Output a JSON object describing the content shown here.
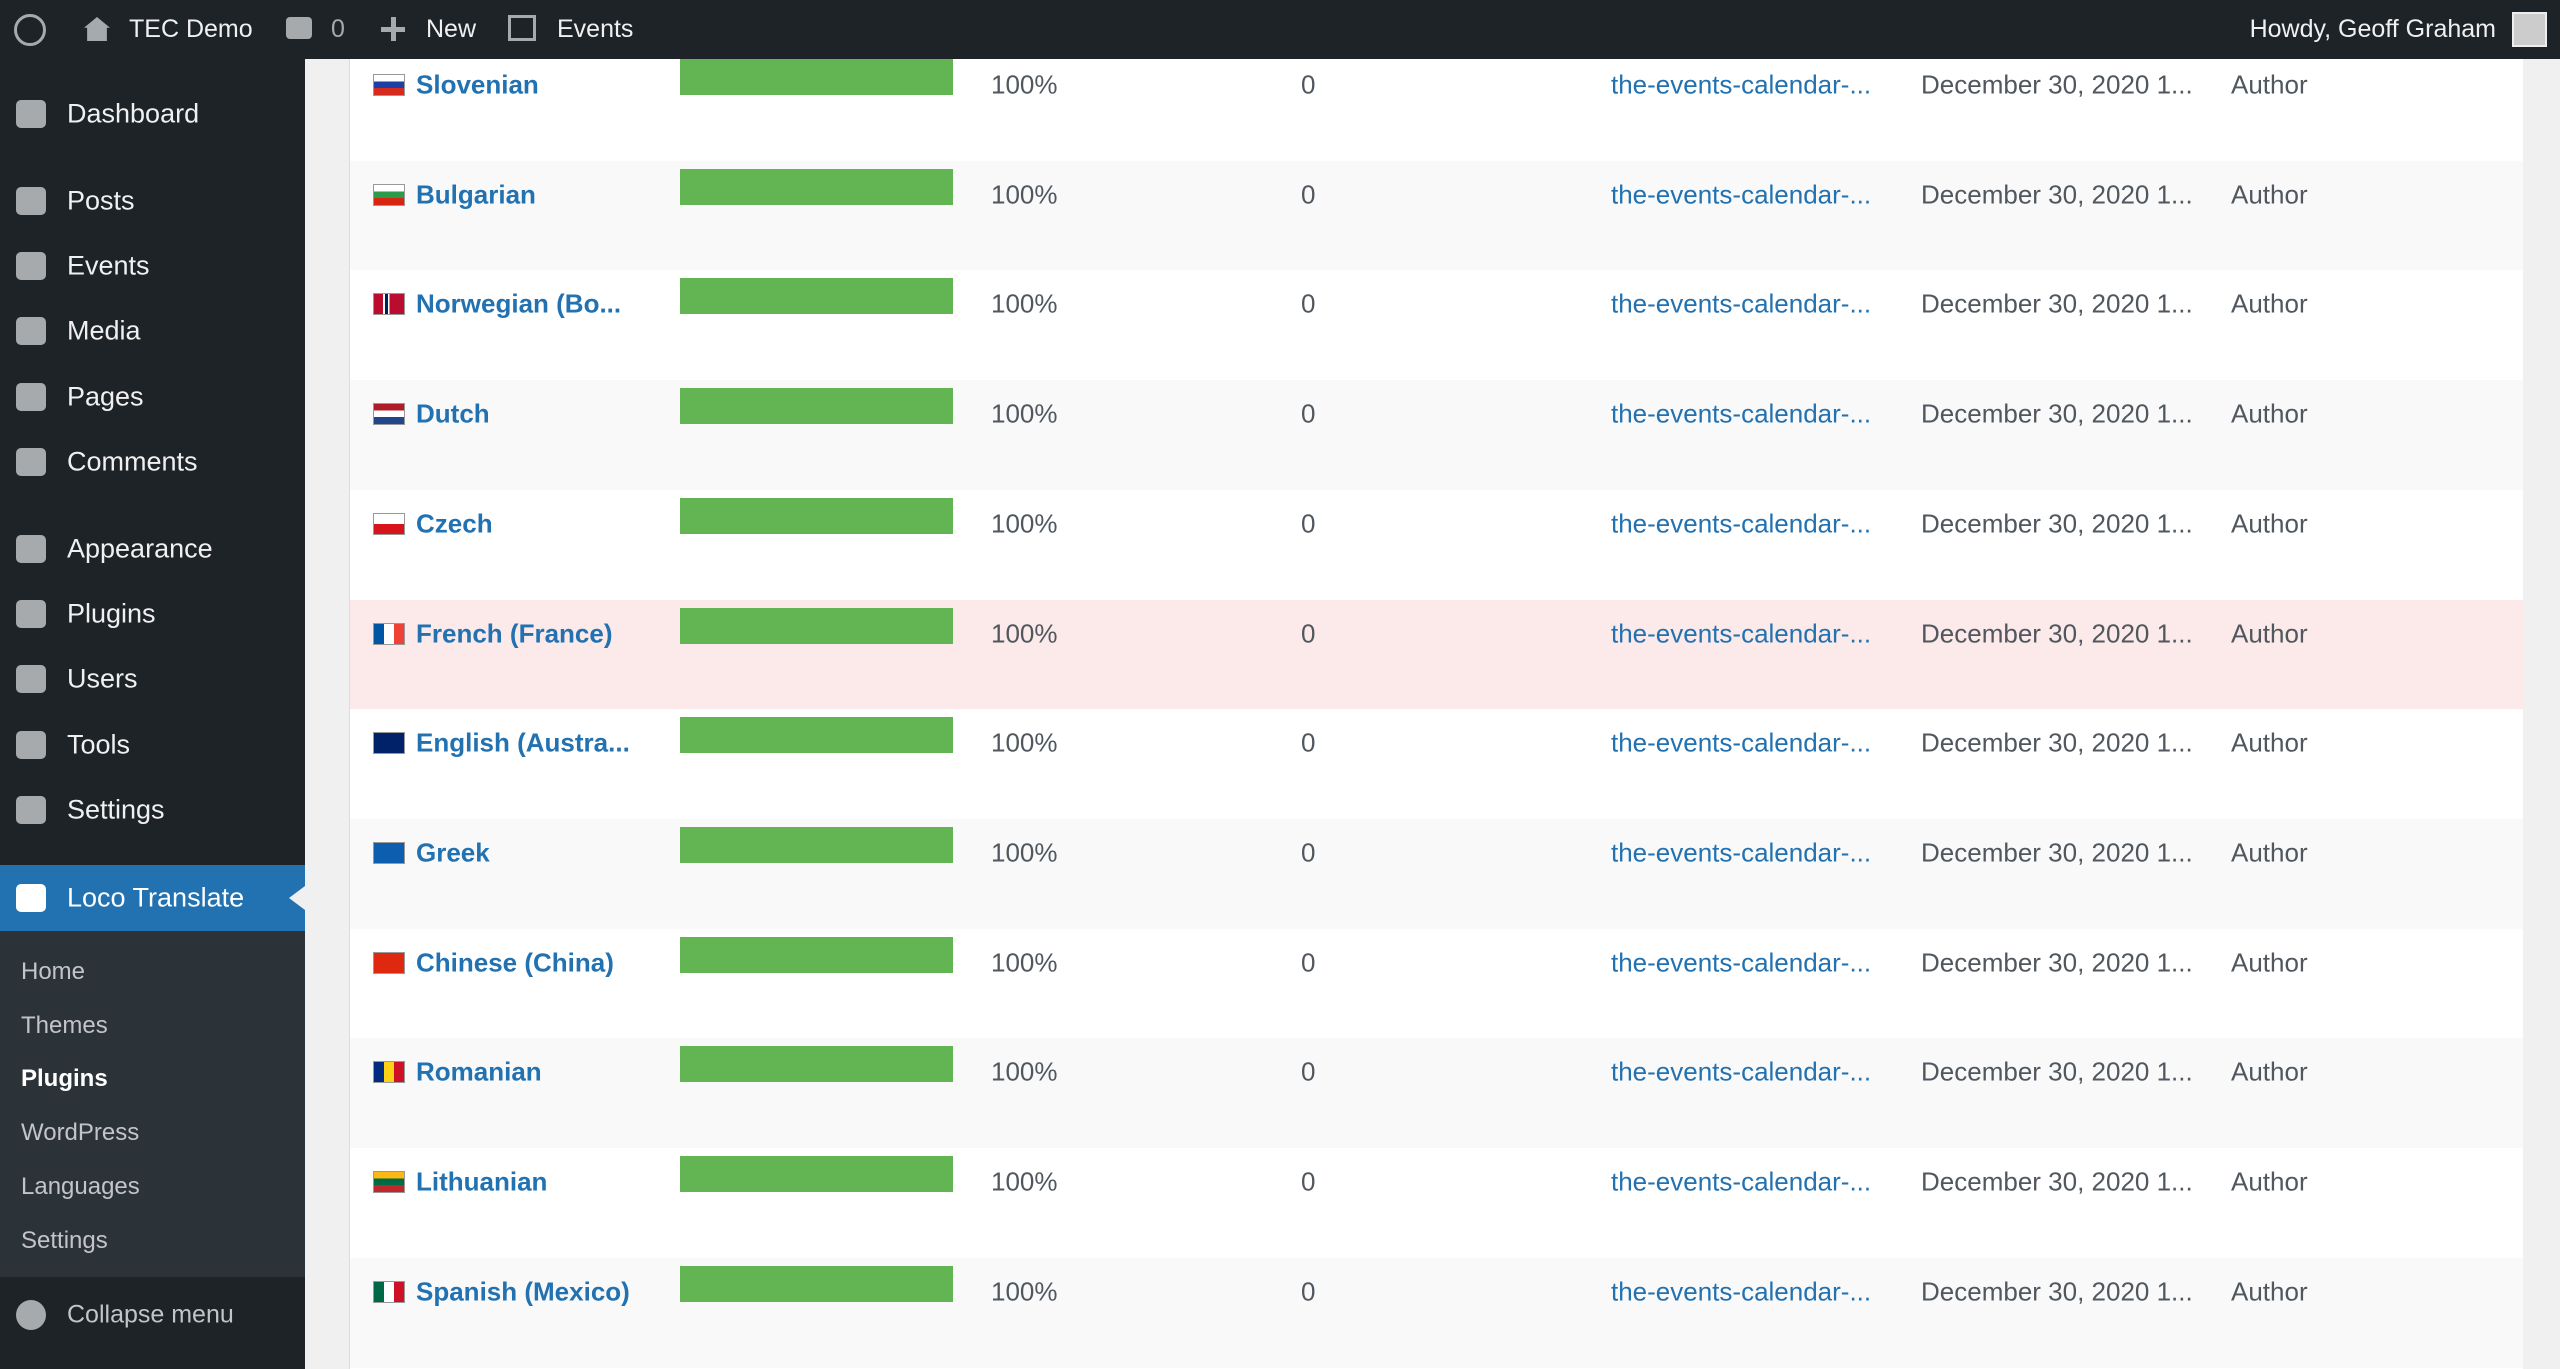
{
  "admin_bar": {
    "site": "TEC Demo",
    "comments": 0,
    "new": "New",
    "events": "Events",
    "greeting": "Howdy, Geoff Graham"
  },
  "menu": [
    "Dashboard",
    "Posts",
    "Events",
    "Media",
    "Pages",
    "Comments",
    "Appearance",
    "Plugins",
    "Users",
    "Tools",
    "Settings"
  ],
  "active_menu": "Loco Translate",
  "submenu": [
    {
      "label": "Home",
      "current": false
    },
    {
      "label": "Themes",
      "current": false
    },
    {
      "label": "Plugins",
      "current": true
    },
    {
      "label": "WordPress",
      "current": false
    },
    {
      "label": "Languages",
      "current": false
    },
    {
      "label": "Settings",
      "current": false
    }
  ],
  "collapse": "Collapse menu",
  "table": {
    "rows": [
      {
        "language": "Slovenian",
        "progress": {
          "value": 100,
          "label": "100%"
        },
        "pending": 0,
        "file": "the-events-calendar-...",
        "modified": "December 30, 2020 1...",
        "author": "Author",
        "highlight": false
      },
      {
        "language": "Bulgarian",
        "progress": {
          "value": 100,
          "label": "100%"
        },
        "pending": 0,
        "file": "the-events-calendar-...",
        "modified": "December 30, 2020 1...",
        "author": "Author",
        "highlight": false
      },
      {
        "language": "Norwegian (Bo...",
        "progress": {
          "value": 100,
          "label": "100%"
        },
        "pending": 0,
        "file": "the-events-calendar-...",
        "modified": "December 30, 2020 1...",
        "author": "Author",
        "highlight": false
      },
      {
        "language": "Dutch",
        "progress": {
          "value": 100,
          "label": "100%"
        },
        "pending": 0,
        "file": "the-events-calendar-...",
        "modified": "December 30, 2020 1...",
        "author": "Author",
        "highlight": false
      },
      {
        "language": "Czech",
        "progress": {
          "value": 100,
          "label": "100%"
        },
        "pending": 0,
        "file": "the-events-calendar-...",
        "modified": "December 30, 2020 1...",
        "author": "Author",
        "highlight": false
      },
      {
        "language": "French (France)",
        "progress": {
          "value": 100,
          "label": "100%"
        },
        "pending": 0,
        "file": "the-events-calendar-...",
        "modified": "December 30, 2020 1...",
        "author": "Author",
        "highlight": true
      },
      {
        "language": "English (Austra...",
        "progress": {
          "value": 100,
          "label": "100%"
        },
        "pending": 0,
        "file": "the-events-calendar-...",
        "modified": "December 30, 2020 1...",
        "author": "Author",
        "highlight": false
      },
      {
        "language": "Greek",
        "progress": {
          "value": 100,
          "label": "100%"
        },
        "pending": 0,
        "file": "the-events-calendar-...",
        "modified": "December 30, 2020 1...",
        "author": "Author",
        "highlight": false
      },
      {
        "language": "Chinese (China)",
        "progress": {
          "value": 100,
          "label": "100%"
        },
        "pending": 0,
        "file": "the-events-calendar-...",
        "modified": "December 30, 2020 1...",
        "author": "Author",
        "highlight": false
      },
      {
        "language": "Romanian",
        "progress": {
          "value": 100,
          "label": "100%"
        },
        "pending": 0,
        "file": "the-events-calendar-...",
        "modified": "December 30, 2020 1...",
        "author": "Author",
        "highlight": false
      },
      {
        "language": "Lithuanian",
        "progress": {
          "value": 100,
          "label": "100%"
        },
        "pending": 0,
        "file": "the-events-calendar-...",
        "modified": "December 30, 2020 1...",
        "author": "Author",
        "highlight": false
      },
      {
        "language": "Spanish (Mexico)",
        "progress": {
          "value": 100,
          "label": "100%"
        },
        "pending": 0,
        "file": "the-events-calendar-...",
        "modified": "December 30, 2020 1...",
        "author": "Author",
        "highlight": false
      }
    ]
  }
}
